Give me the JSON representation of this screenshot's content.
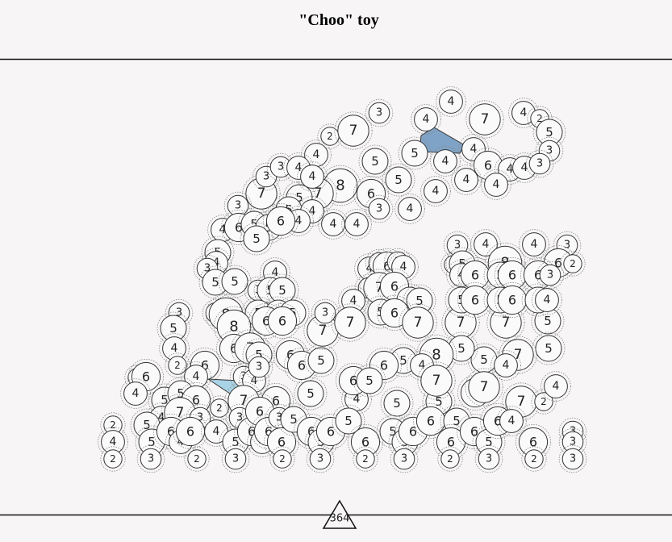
{
  "title": "\"Choo\" toy",
  "circles": [
    "3",
    "4",
    "4",
    "7",
    "4",
    "2",
    "5",
    "3",
    "2",
    "7",
    "5",
    "4",
    "4",
    "5",
    "4",
    "6",
    "4",
    "4",
    "3",
    "5",
    "4",
    "4",
    "4",
    "8",
    "7",
    "5",
    "7",
    "3",
    "3",
    "4",
    "4",
    "6",
    "3",
    "4",
    "3",
    "5",
    "4",
    "4",
    "4",
    "4",
    "4",
    "6",
    "5",
    "5",
    "6",
    "5",
    "5",
    "4",
    "3",
    "5",
    "5",
    "4",
    "3",
    "5",
    "5",
    "3",
    "8",
    "5",
    "5",
    "5",
    "8",
    "6",
    "6",
    "6",
    "7",
    "5",
    "6",
    "6",
    "5",
    "7",
    "3",
    "4",
    "3",
    "6",
    "3",
    "4",
    "3",
    "7",
    "6",
    "5",
    "5",
    "4",
    "5",
    "6",
    "7",
    "7",
    "7",
    "7",
    "5",
    "3",
    "4",
    "4",
    "3",
    "2",
    "5",
    "8",
    "6",
    "2",
    "4",
    "6",
    "5",
    "6",
    "6",
    "3",
    "5",
    "6",
    "5",
    "6",
    "5",
    "4",
    "3",
    "5",
    "4",
    "2",
    "6",
    "2",
    "6",
    "4",
    "4",
    "3",
    "4",
    "3",
    "5",
    "5",
    "6",
    "4",
    "7",
    "3",
    "2",
    "7",
    "6",
    "5",
    "4",
    "5",
    "5",
    "6",
    "7",
    "2",
    "4",
    "5",
    "7",
    "5",
    "4",
    "5",
    "8",
    "5",
    "4",
    "6",
    "6",
    "5",
    "7",
    "7",
    "2",
    "5",
    "4",
    "5",
    "6",
    "4",
    "6",
    "4",
    "3",
    "5",
    "6",
    "6",
    "4",
    "6",
    "3",
    "6",
    "5",
    "6",
    "5",
    "6",
    "5",
    "6",
    "5",
    "5",
    "6",
    "6",
    "5",
    "6",
    "6",
    "5",
    "6",
    "4",
    "6",
    "3",
    "3",
    "2",
    "3",
    "2",
    "3",
    "2",
    "3",
    "2",
    "3",
    "2",
    "3",
    "2",
    "3"
  ],
  "footer": {
    "count": "364"
  }
}
